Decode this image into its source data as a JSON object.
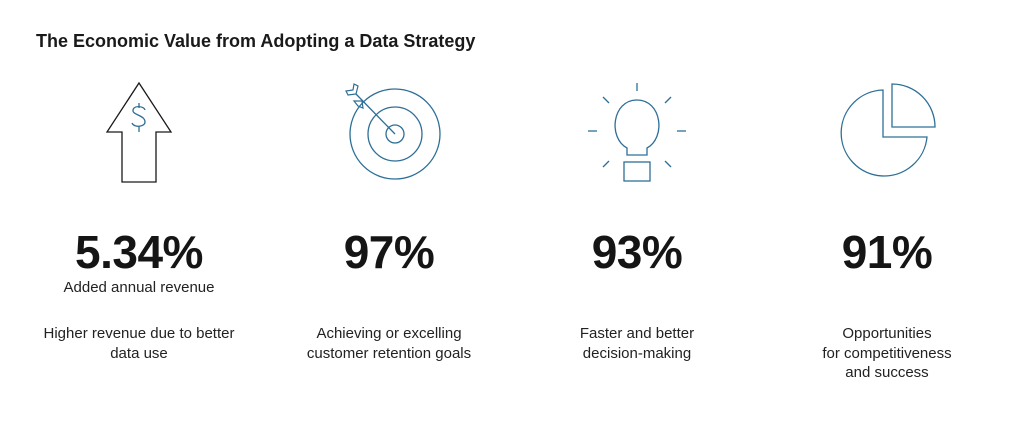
{
  "title": "The Economic Value from Adopting a Data Strategy",
  "accent_color": "#2e6f96",
  "dark_color": "#1a1a1a",
  "stats": [
    {
      "icon": "dollar-up-arrow-icon",
      "value": "5.34%",
      "sublabel": "Added annual revenue",
      "description_lines": [
        "Higher revenue due to better",
        "data use"
      ]
    },
    {
      "icon": "target-icon",
      "value": "97%",
      "sublabel": "",
      "description_lines": [
        "Achieving or excelling",
        "customer retention goals"
      ]
    },
    {
      "icon": "lightbulb-icon",
      "value": "93%",
      "sublabel": "",
      "description_lines": [
        "Faster and better",
        "decision-making"
      ]
    },
    {
      "icon": "pie-chart-icon",
      "value": "91%",
      "sublabel": "",
      "description_lines": [
        "Opportunities",
        "for competitiveness",
        "and success"
      ]
    }
  ]
}
